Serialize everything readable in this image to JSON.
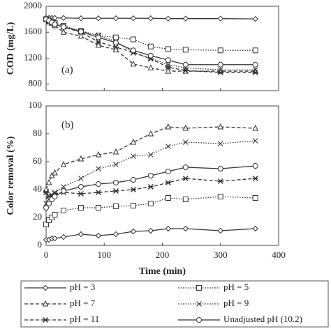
{
  "chart_data": [
    {
      "type": "line",
      "annotation": "(a)",
      "y_label": "COD (mg/L)",
      "x": [
        0,
        5,
        10,
        15,
        30,
        60,
        90,
        120,
        150,
        180,
        210,
        240,
        300,
        360
      ],
      "xlim": [
        0,
        400
      ],
      "xticks": [
        0,
        100,
        200,
        300,
        400
      ],
      "ylim": [
        700,
        2000
      ],
      "yticks": [
        800,
        1200,
        1600,
        2000
      ],
      "series": [
        {
          "color": "#333333",
          "marker": "diamond",
          "dash": "solid",
          "values": [
            1820,
            1820,
            1820,
            1820,
            1820,
            1815,
            1815,
            1815,
            1815,
            1815,
            1810,
            1810,
            1810,
            1805
          ]
        },
        {
          "color": "#333333",
          "marker": "square",
          "dash": "dotted",
          "values": [
            1800,
            1780,
            1760,
            1740,
            1700,
            1620,
            1550,
            1520,
            1490,
            1380,
            1340,
            1330,
            1320,
            1320
          ]
        },
        {
          "color": "#333333",
          "marker": "triangle",
          "dash": "dashed",
          "values": [
            1800,
            1760,
            1740,
            1700,
            1600,
            1540,
            1400,
            1330,
            1110,
            1050,
            1000,
            1000,
            1000,
            1000
          ]
        },
        {
          "color": "#333333",
          "marker": "x",
          "dash": "dotted",
          "values": [
            1800,
            1780,
            1750,
            1720,
            1680,
            1620,
            1550,
            1460,
            1280,
            1200,
            1100,
            1050,
            1020,
            1020
          ]
        },
        {
          "color": "#333333",
          "marker": "asterisk",
          "dash": "dashed",
          "values": [
            1800,
            1760,
            1740,
            1720,
            1680,
            1600,
            1450,
            1370,
            1290,
            1190,
            1060,
            1010,
            980,
            980
          ]
        },
        {
          "color": "#333333",
          "marker": "circle",
          "dash": "solid",
          "values": [
            1800,
            1780,
            1750,
            1720,
            1680,
            1610,
            1520,
            1440,
            1320,
            1240,
            1170,
            1100,
            1100,
            1100
          ]
        }
      ]
    },
    {
      "type": "line",
      "annotation": "(b)",
      "y_label": "Color removal (%)",
      "x_label": "Time (min)",
      "x": [
        0,
        5,
        10,
        15,
        30,
        60,
        90,
        120,
        150,
        180,
        210,
        240,
        300,
        360
      ],
      "xlim": [
        0,
        400
      ],
      "xticks": [
        0,
        100,
        200,
        300,
        400
      ],
      "ylim": [
        0,
        100
      ],
      "yticks": [
        0,
        20,
        40,
        60,
        80,
        100
      ],
      "series": [
        {
          "name": "pH = 3",
          "color": "#333333",
          "marker": "diamond",
          "dash": "solid",
          "values": [
            4,
            4,
            5,
            5,
            6,
            8,
            7,
            8,
            10,
            10.5,
            12,
            12,
            10.5,
            12
          ]
        },
        {
          "name": "pH = 5",
          "color": "#333333",
          "marker": "square",
          "dash": "dotted",
          "values": [
            15,
            18,
            20,
            22,
            25,
            27,
            27,
            28,
            28.5,
            30,
            34,
            33,
            35,
            34
          ]
        },
        {
          "name": "pH = 7",
          "color": "#333333",
          "marker": "triangle",
          "dash": "dashed",
          "values": [
            40,
            45,
            50,
            52,
            58,
            62,
            65,
            67,
            74,
            80,
            85,
            84,
            85,
            84
          ]
        },
        {
          "name": "pH = 9",
          "color": "#333333",
          "marker": "x",
          "dash": "dotted",
          "values": [
            30,
            33,
            35,
            38,
            42,
            48,
            55,
            58,
            64,
            65,
            71,
            74,
            73,
            75
          ]
        },
        {
          "name": "pH = 11",
          "color": "#333333",
          "marker": "asterisk",
          "dash": "dashed",
          "values": [
            38,
            35,
            36,
            37,
            38,
            37,
            38,
            39,
            40,
            42,
            45,
            48,
            46,
            48
          ]
        },
        {
          "name": "Unadjusted pH (10.2)",
          "color": "#333333",
          "marker": "circle",
          "dash": "solid",
          "values": [
            27,
            30,
            33,
            35,
            39,
            42,
            44,
            45,
            47,
            50,
            53,
            56,
            55,
            57
          ]
        }
      ]
    }
  ]
}
